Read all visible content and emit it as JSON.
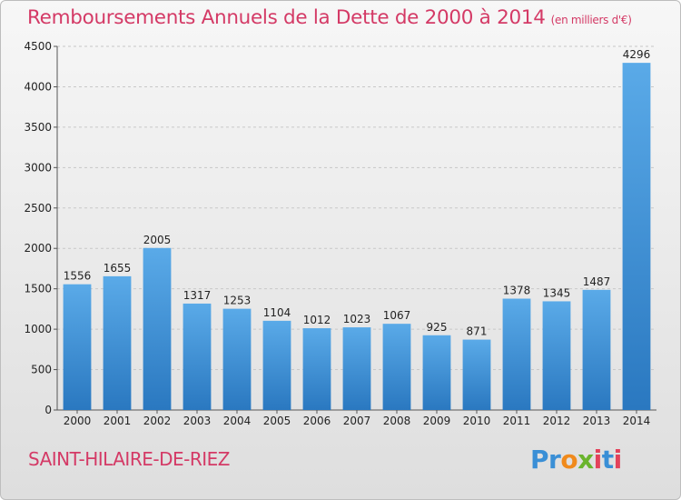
{
  "header": {
    "title": "Remboursements Annuels de la Dette de 2000 à 2014",
    "unit": "(en milliers d'€)"
  },
  "footer": {
    "city": "SAINT-HILAIRE-DE-RIEZ",
    "logo_text": "Proxiti"
  },
  "colors": {
    "title": "#d43a66",
    "bar_top": "#5aaae8",
    "bar_bottom": "#2a78c0"
  },
  "chart_data": {
    "type": "bar",
    "title": "Remboursements Annuels de la Dette de 2000 à 2014",
    "xlabel": "",
    "ylabel": "",
    "categories": [
      "2000",
      "2001",
      "2002",
      "2003",
      "2004",
      "2005",
      "2006",
      "2007",
      "2008",
      "2009",
      "2010",
      "2011",
      "2012",
      "2013",
      "2014"
    ],
    "values": [
      1556,
      1655,
      2005,
      1317,
      1253,
      1104,
      1012,
      1023,
      1067,
      925,
      871,
      1378,
      1345,
      1487,
      4296
    ],
    "ylim": [
      0,
      4500
    ],
    "yticks": [
      0,
      500,
      1000,
      1500,
      2000,
      2500,
      3000,
      3500,
      4000,
      4500
    ],
    "grid": true,
    "legend": "none"
  }
}
